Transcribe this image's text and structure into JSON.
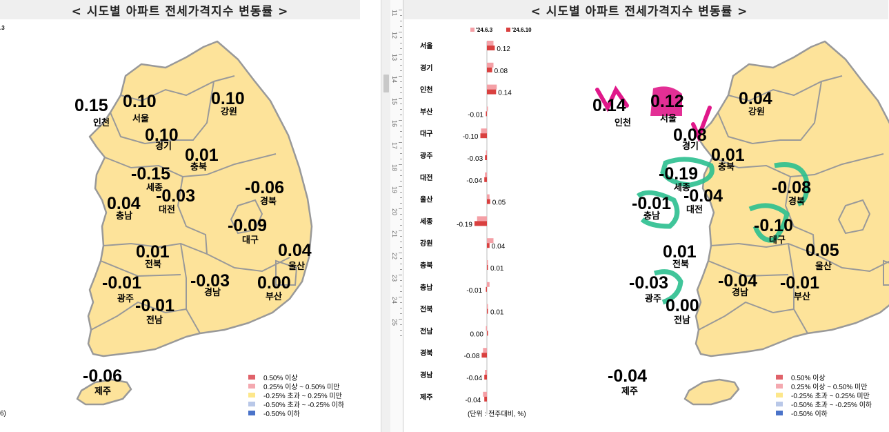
{
  "title": "< 시도별 아파트 전세가격지수 변동률 >",
  "left_date_fragment": ".3",
  "left_unit_fragment": "6)",
  "legend": [
    {
      "label": "0.50% 이상",
      "color": "#e0626a"
    },
    {
      "label": "0.25% 이상 ~ 0.50% 미만",
      "color": "#f4a9b0"
    },
    {
      "label": "-0.25% 초과 ~ 0.25% 미만",
      "color": "#fde78b"
    },
    {
      "label": "-0.50% 초과 ~ -0.25% 이하",
      "color": "#b9c8e8"
    },
    {
      "label": "-0.50% 이하",
      "color": "#4a73c9"
    }
  ],
  "left_map": {
    "regions": [
      {
        "name": "인천",
        "value": "0.15"
      },
      {
        "name": "서울",
        "value": "0.10"
      },
      {
        "name": "강원",
        "value": "0.10"
      },
      {
        "name": "경기",
        "value": "0.10"
      },
      {
        "name": "충북",
        "value": "0.01"
      },
      {
        "name": "세종",
        "value": "-0.15"
      },
      {
        "name": "대전",
        "value": "-0.03"
      },
      {
        "name": "경북",
        "value": "-0.06"
      },
      {
        "name": "충남",
        "value": "0.04"
      },
      {
        "name": "대구",
        "value": "-0.09"
      },
      {
        "name": "울산",
        "value": "0.04"
      },
      {
        "name": "전북",
        "value": "0.01"
      },
      {
        "name": "광주",
        "value": "-0.01"
      },
      {
        "name": "경남",
        "value": "-0.03"
      },
      {
        "name": "부산",
        "value": "0.00"
      },
      {
        "name": "전남",
        "value": "-0.01"
      },
      {
        "name": "제주",
        "value": "-0.06"
      }
    ]
  },
  "right_map": {
    "regions": [
      {
        "name": "인천",
        "value": "0.14"
      },
      {
        "name": "서울",
        "value": "0.12"
      },
      {
        "name": "강원",
        "value": "0.04"
      },
      {
        "name": "경기",
        "value": "0.08"
      },
      {
        "name": "충북",
        "value": "0.01"
      },
      {
        "name": "세종",
        "value": "-0.19"
      },
      {
        "name": "대전",
        "value": "-0.04"
      },
      {
        "name": "경북",
        "value": "-0.08"
      },
      {
        "name": "충남",
        "value": "-0.01"
      },
      {
        "name": "대구",
        "value": "-0.10"
      },
      {
        "name": "울산",
        "value": "0.05"
      },
      {
        "name": "전북",
        "value": "0.01"
      },
      {
        "name": "광주",
        "value": "-0.03"
      },
      {
        "name": "경남",
        "value": "-0.04"
      },
      {
        "name": "부산",
        "value": "-0.01"
      },
      {
        "name": "전남",
        "value": "0.00"
      },
      {
        "name": "제주",
        "value": "-0.04"
      }
    ]
  },
  "ruler_numbers": [
    "11",
    "12",
    "13",
    "14",
    "15",
    "16",
    "17",
    "18",
    "19",
    "20",
    "21",
    "22",
    "23",
    "24",
    "25"
  ],
  "chart_data": {
    "type": "bar",
    "orientation": "horizontal",
    "categories": [
      "서울",
      "경기",
      "인천",
      "부산",
      "대구",
      "광주",
      "대전",
      "울산",
      "세종",
      "강원",
      "충북",
      "충남",
      "전북",
      "전남",
      "경북",
      "경남",
      "제주"
    ],
    "series": [
      {
        "name": "'24.6.3",
        "color": "#f4a0a6",
        "values": [
          0.1,
          0.1,
          0.15,
          0.0,
          -0.09,
          -0.01,
          -0.03,
          0.04,
          -0.15,
          0.1,
          0.01,
          0.04,
          0.01,
          -0.01,
          -0.06,
          -0.03,
          -0.06
        ]
      },
      {
        "name": "'24.6.10",
        "color": "#d9403f",
        "values": [
          0.12,
          0.08,
          0.14,
          -0.01,
          -0.1,
          -0.03,
          -0.04,
          0.05,
          -0.19,
          0.04,
          0.01,
          -0.01,
          0.01,
          0.0,
          -0.08,
          -0.04,
          -0.04
        ]
      }
    ],
    "data_labels": [
      "0.12",
      "0.08",
      "0.14",
      "-0.01",
      "-0.10",
      "-0.03",
      "-0.04",
      "0.05",
      "-0.19",
      "0.04",
      "0.01",
      "-0.01",
      "0.01",
      "0.00",
      "-0.08",
      "-0.04",
      "-0.04"
    ],
    "unit_note": "(단위 : 전주대비, %)"
  }
}
